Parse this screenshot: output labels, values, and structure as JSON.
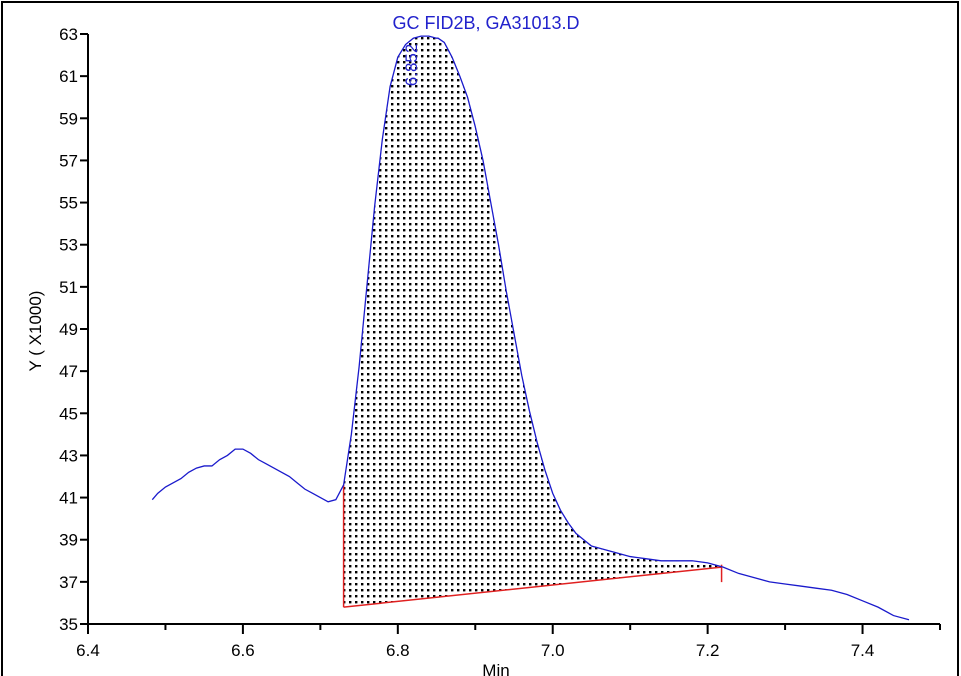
{
  "chart_data": {
    "type": "line",
    "title": "GC FID2B, GA31013.D",
    "xlabel": "Min",
    "ylabel": "Y ( X1000)",
    "xlim": [
      6.4,
      7.5
    ],
    "ylim": [
      35,
      63
    ],
    "x_ticks": [
      "6.4",
      "6.6",
      "6.8",
      "7.0",
      "7.2",
      "7.4"
    ],
    "x_tick_values": [
      6.4,
      6.6,
      6.8,
      7.0,
      7.2,
      7.4
    ],
    "y_ticks": [
      "35",
      "37",
      "39",
      "41",
      "43",
      "45",
      "47",
      "49",
      "51",
      "53",
      "55",
      "57",
      "59",
      "61",
      "63"
    ],
    "y_tick_values": [
      35,
      37,
      39,
      41,
      43,
      45,
      47,
      49,
      51,
      53,
      55,
      57,
      59,
      61,
      63
    ],
    "grid": false,
    "line_color": "#1a1acc",
    "baseline_color": "#e02020",
    "series": [
      {
        "x": [
          6.483,
          6.49,
          6.5,
          6.51,
          6.52,
          6.53,
          6.54,
          6.55,
          6.56,
          6.57,
          6.58,
          6.59,
          6.6,
          6.61,
          6.62,
          6.63,
          6.64,
          6.65,
          6.66,
          6.67,
          6.68,
          6.69,
          6.7,
          6.71,
          6.72,
          6.73,
          6.74,
          6.75,
          6.76,
          6.77,
          6.78,
          6.79,
          6.8,
          6.81,
          6.82,
          6.83,
          6.84,
          6.85,
          6.852,
          6.86,
          6.87,
          6.88,
          6.89,
          6.9,
          6.91,
          6.92,
          6.93,
          6.94,
          6.95,
          6.96,
          6.97,
          6.98,
          6.99,
          7.0,
          7.01,
          7.02,
          7.03,
          7.04,
          7.05,
          7.06,
          7.07,
          7.08,
          7.09,
          7.1,
          7.12,
          7.14,
          7.16,
          7.18,
          7.2,
          7.22,
          7.24,
          7.26,
          7.28,
          7.3,
          7.32,
          7.34,
          7.36,
          7.38,
          7.4,
          7.42,
          7.44,
          7.46
        ],
        "y": [
          40.9,
          41.2,
          41.5,
          41.7,
          41.9,
          42.2,
          42.4,
          42.5,
          42.5,
          42.8,
          43.0,
          43.3,
          43.3,
          43.1,
          42.8,
          42.6,
          42.4,
          42.2,
          42.0,
          41.7,
          41.4,
          41.2,
          41.0,
          40.8,
          40.9,
          41.6,
          44.0,
          47.2,
          51.0,
          54.8,
          58.0,
          60.5,
          61.9,
          62.5,
          62.8,
          62.9,
          62.9,
          62.8,
          62.8,
          62.6,
          61.9,
          61.0,
          60.0,
          58.6,
          57.0,
          55.0,
          53.0,
          50.8,
          48.8,
          46.8,
          45.1,
          43.6,
          42.3,
          41.2,
          40.4,
          39.8,
          39.3,
          39.0,
          38.7,
          38.6,
          38.5,
          38.4,
          38.3,
          38.2,
          38.1,
          38.0,
          38.0,
          38.0,
          37.9,
          37.7,
          37.4,
          37.2,
          37.0,
          36.9,
          36.8,
          36.7,
          36.6,
          36.4,
          36.1,
          35.8,
          35.4,
          35.2
        ]
      }
    ],
    "integration": {
      "start_x": 6.73,
      "end_x": 7.218,
      "baseline_start_y": 35.8,
      "baseline_end_y": 37.7,
      "fill_pattern": "dots"
    },
    "annotations": [
      {
        "text": "6.852",
        "x": 6.852,
        "y": 62.8
      }
    ]
  }
}
